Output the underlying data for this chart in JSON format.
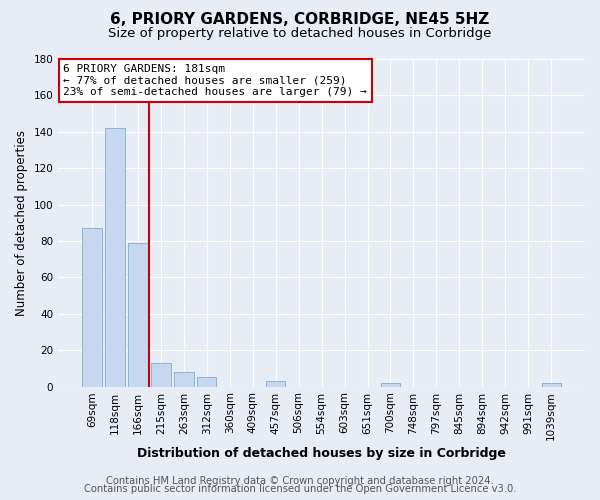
{
  "title": "6, PRIORY GARDENS, CORBRIDGE, NE45 5HZ",
  "subtitle": "Size of property relative to detached houses in Corbridge",
  "xlabel": "Distribution of detached houses by size in Corbridge",
  "ylabel": "Number of detached properties",
  "bar_labels": [
    "69sqm",
    "118sqm",
    "166sqm",
    "215sqm",
    "263sqm",
    "312sqm",
    "360sqm",
    "409sqm",
    "457sqm",
    "506sqm",
    "554sqm",
    "603sqm",
    "651sqm",
    "700sqm",
    "748sqm",
    "797sqm",
    "845sqm",
    "894sqm",
    "942sqm",
    "991sqm",
    "1039sqm"
  ],
  "bar_values": [
    87,
    142,
    79,
    13,
    8,
    5,
    0,
    0,
    3,
    0,
    0,
    0,
    0,
    2,
    0,
    0,
    0,
    0,
    0,
    0,
    2
  ],
  "bar_color": "#c5d8f0",
  "bar_edge_color": "#7badd4",
  "vline_x": 2.5,
  "vline_color": "#cc0000",
  "ylim": [
    0,
    180
  ],
  "yticks": [
    0,
    20,
    40,
    60,
    80,
    100,
    120,
    140,
    160,
    180
  ],
  "annotation_line1": "6 PRIORY GARDENS: 181sqm",
  "annotation_line2": "← 77% of detached houses are smaller (259)",
  "annotation_line3": "23% of semi-detached houses are larger (79) →",
  "annotation_box_color": "#cc0000",
  "annotation_box_fill": "#ffffff",
  "footer_line1": "Contains HM Land Registry data © Crown copyright and database right 2024.",
  "footer_line2": "Contains public sector information licensed under the Open Government Licence v3.0.",
  "bg_color": "#e8ecf5",
  "plot_bg_color": "#e8ecf5",
  "grid_color": "#ffffff",
  "title_fontsize": 11,
  "subtitle_fontsize": 9.5,
  "xlabel_fontsize": 9,
  "ylabel_fontsize": 8.5,
  "tick_fontsize": 7.5,
  "footer_fontsize": 7.2
}
